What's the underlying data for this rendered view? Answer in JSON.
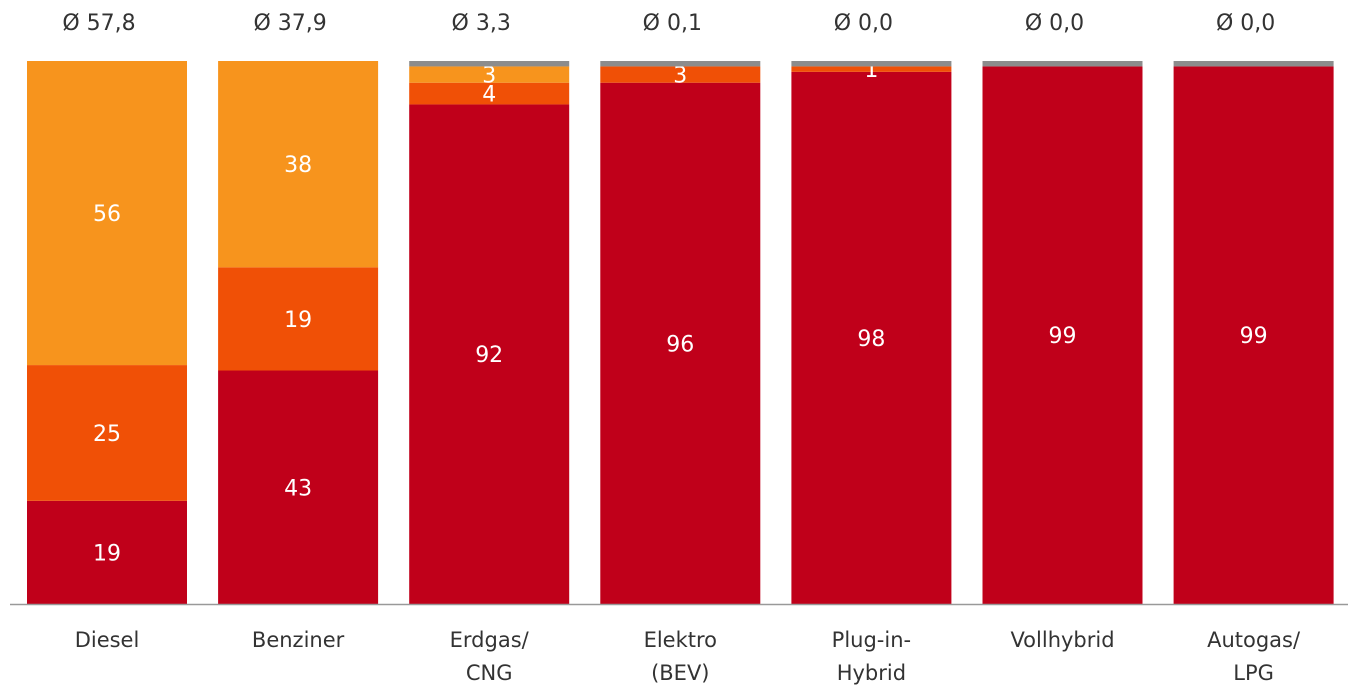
{
  "chart_data": {
    "type": "stacked_bar",
    "categories": [
      "Diesel",
      "Benziner",
      "Erdgas/\nCNG",
      "Elektro\n(BEV)",
      "Plug-in-\nHybrid",
      "Vollhybrid",
      "Autogas/\nLPG"
    ],
    "annotations": [
      "Ø 57,8",
      "Ø 37,9",
      "Ø 3,3",
      "Ø 0,1",
      "Ø 0,0",
      "Ø 0,0",
      "Ø 0,0"
    ],
    "series": [
      {
        "color": "#c0001a",
        "values": [
          19,
          43,
          92,
          96,
          98,
          99,
          99
        ],
        "labels": true
      },
      {
        "color": "#f05006",
        "values": [
          25,
          19,
          4,
          3,
          1,
          0,
          0
        ],
        "labels": true
      },
      {
        "color": "#f7941d",
        "values": [
          56,
          38,
          3,
          0,
          0,
          0,
          0
        ],
        "labels": true
      },
      {
        "color": "#8c8c8c",
        "values": [
          0,
          0,
          1,
          1,
          1,
          1,
          1
        ],
        "labels": false
      }
    ],
    "ylim": [
      0,
      100
    ]
  }
}
